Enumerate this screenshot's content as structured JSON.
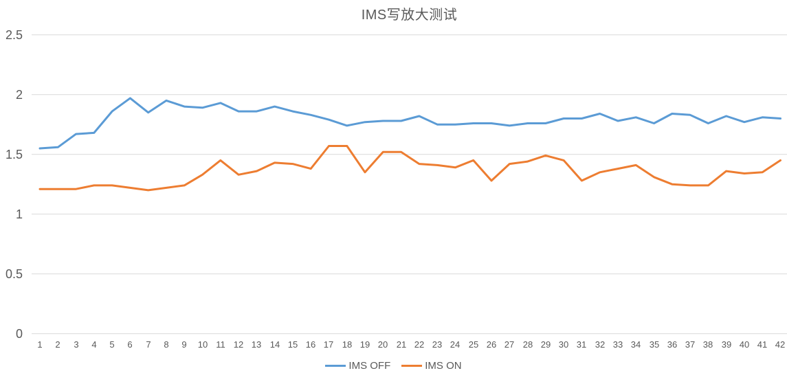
{
  "title": "IMS写放大测试",
  "colors": {
    "background": "#FFFFFF",
    "gridline": "#D9D9D9",
    "axis_text": "#595959",
    "title_text": "#595959",
    "series_blue": "#5B9BD5",
    "series_orange": "#ED7D31"
  },
  "legend": {
    "position": "bottom",
    "items": [
      {
        "label": "IMS OFF",
        "color": "#5B9BD5",
        "swatch": "line"
      },
      {
        "label": "IMS ON",
        "color": "#ED7D31",
        "swatch": "line"
      }
    ]
  },
  "chart_data": {
    "type": "line",
    "title": "IMS写放大测试",
    "xlabel": "",
    "ylabel": "",
    "ylim": [
      0,
      2.5
    ],
    "y_ticks": [
      "0",
      "0.5",
      "1",
      "1.5",
      "2",
      "2.5"
    ],
    "grid": "horizontal",
    "legend_position": "bottom",
    "categories": [
      "1",
      "2",
      "3",
      "4",
      "5",
      "6",
      "7",
      "8",
      "9",
      "10",
      "11",
      "12",
      "13",
      "14",
      "15",
      "16",
      "17",
      "18",
      "19",
      "20",
      "21",
      "22",
      "23",
      "24",
      "25",
      "26",
      "27",
      "28",
      "29",
      "30",
      "31",
      "32",
      "33",
      "34",
      "35",
      "36",
      "37",
      "38",
      "39",
      "40",
      "41",
      "42"
    ],
    "series": [
      {
        "name": "IMS OFF",
        "color": "#5B9BD5",
        "values": [
          1.55,
          1.56,
          1.67,
          1.68,
          1.86,
          1.97,
          1.85,
          1.95,
          1.9,
          1.89,
          1.93,
          1.86,
          1.86,
          1.9,
          1.86,
          1.83,
          1.79,
          1.74,
          1.77,
          1.78,
          1.78,
          1.82,
          1.75,
          1.75,
          1.76,
          1.76,
          1.74,
          1.76,
          1.76,
          1.8,
          1.8,
          1.84,
          1.78,
          1.81,
          1.76,
          1.84,
          1.83,
          1.76,
          1.82,
          1.77,
          1.81,
          1.8
        ]
      },
      {
        "name": "IMS ON",
        "color": "#ED7D31",
        "values": [
          1.21,
          1.21,
          1.21,
          1.24,
          1.24,
          1.22,
          1.2,
          1.22,
          1.24,
          1.33,
          1.45,
          1.33,
          1.36,
          1.43,
          1.42,
          1.38,
          1.57,
          1.57,
          1.35,
          1.52,
          1.52,
          1.42,
          1.41,
          1.39,
          1.45,
          1.28,
          1.42,
          1.44,
          1.49,
          1.45,
          1.28,
          1.35,
          1.38,
          1.41,
          1.31,
          1.25,
          1.24,
          1.24,
          1.36,
          1.34,
          1.35,
          1.45
        ]
      }
    ]
  }
}
